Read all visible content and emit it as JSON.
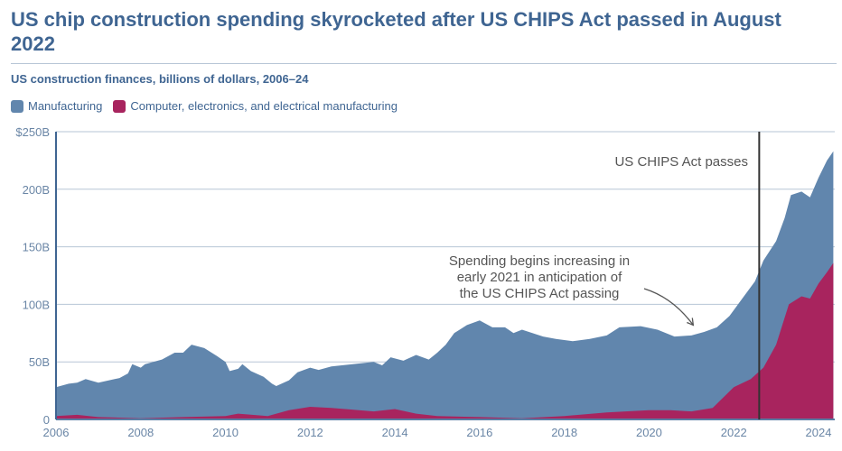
{
  "title": "US chip construction spending skyrocketed after US CHIPS Act passed in August 2022",
  "subtitle": "US construction finances, billions of dollars, 2006–24",
  "chart_data": {
    "type": "area",
    "xlim": [
      2006,
      2024.4
    ],
    "ylim": [
      0,
      250
    ],
    "grid": true,
    "legend_placement": "top-left",
    "x_ticks": [
      2006,
      2008,
      2010,
      2012,
      2014,
      2016,
      2018,
      2020,
      2022,
      2024
    ],
    "x_tick_labels": [
      "2006",
      "2008",
      "2010",
      "2012",
      "2014",
      "2016",
      "2018",
      "2020",
      "2022",
      "2024"
    ],
    "y_ticks": [
      0,
      50,
      100,
      150,
      200,
      250
    ],
    "y_tick_labels": [
      "0",
      "50B",
      "100B",
      "150B",
      "200B",
      "$250B"
    ],
    "series": [
      {
        "name": "Manufacturing",
        "color": "#6186ad",
        "points": [
          [
            2006.0,
            28
          ],
          [
            2006.3,
            31
          ],
          [
            2006.5,
            32
          ],
          [
            2006.7,
            35
          ],
          [
            2007.0,
            32
          ],
          [
            2007.5,
            36
          ],
          [
            2007.7,
            40
          ],
          [
            2007.8,
            48
          ],
          [
            2008.0,
            45
          ],
          [
            2008.1,
            48
          ],
          [
            2008.5,
            52
          ],
          [
            2008.8,
            58
          ],
          [
            2009.0,
            58
          ],
          [
            2009.2,
            65
          ],
          [
            2009.5,
            62
          ],
          [
            2009.8,
            55
          ],
          [
            2010.0,
            50
          ],
          [
            2010.1,
            42
          ],
          [
            2010.3,
            44
          ],
          [
            2010.4,
            48
          ],
          [
            2010.6,
            42
          ],
          [
            2010.9,
            37
          ],
          [
            2011.1,
            31
          ],
          [
            2011.2,
            29
          ],
          [
            2011.5,
            34
          ],
          [
            2011.7,
            41
          ],
          [
            2012.0,
            45
          ],
          [
            2012.2,
            43
          ],
          [
            2012.5,
            46
          ],
          [
            2013.0,
            48
          ],
          [
            2013.5,
            50
          ],
          [
            2013.7,
            47
          ],
          [
            2013.9,
            54
          ],
          [
            2014.2,
            51
          ],
          [
            2014.5,
            56
          ],
          [
            2014.8,
            52
          ],
          [
            2015.0,
            58
          ],
          [
            2015.2,
            65
          ],
          [
            2015.4,
            75
          ],
          [
            2015.7,
            82
          ],
          [
            2016.0,
            86
          ],
          [
            2016.3,
            80
          ],
          [
            2016.6,
            80
          ],
          [
            2016.8,
            75
          ],
          [
            2017.0,
            78
          ],
          [
            2017.5,
            72
          ],
          [
            2017.8,
            70
          ],
          [
            2018.2,
            68
          ],
          [
            2018.6,
            70
          ],
          [
            2019.0,
            73
          ],
          [
            2019.3,
            80
          ],
          [
            2019.8,
            81
          ],
          [
            2020.2,
            78
          ],
          [
            2020.6,
            72
          ],
          [
            2021.0,
            73
          ],
          [
            2021.3,
            76
          ],
          [
            2021.6,
            80
          ],
          [
            2021.9,
            90
          ],
          [
            2022.2,
            105
          ],
          [
            2022.5,
            120
          ],
          [
            2022.7,
            138
          ],
          [
            2023.0,
            155
          ],
          [
            2023.2,
            175
          ],
          [
            2023.35,
            195
          ],
          [
            2023.6,
            198
          ],
          [
            2023.8,
            193
          ],
          [
            2024.0,
            210
          ],
          [
            2024.2,
            225
          ],
          [
            2024.35,
            233
          ]
        ]
      },
      {
        "name": "Computer, electronics, and electrical manufacturing",
        "color": "#a8245e",
        "points": [
          [
            2006.0,
            3
          ],
          [
            2006.5,
            4
          ],
          [
            2007.0,
            2
          ],
          [
            2008.0,
            1
          ],
          [
            2009.0,
            2
          ],
          [
            2010.0,
            3
          ],
          [
            2010.3,
            5
          ],
          [
            2011.0,
            3
          ],
          [
            2011.5,
            8
          ],
          [
            2012.0,
            11
          ],
          [
            2012.5,
            10
          ],
          [
            2013.5,
            7
          ],
          [
            2014.0,
            9
          ],
          [
            2014.5,
            5
          ],
          [
            2015.0,
            3
          ],
          [
            2016.0,
            2
          ],
          [
            2017.0,
            1
          ],
          [
            2018.0,
            3
          ],
          [
            2019.0,
            6
          ],
          [
            2020.0,
            8
          ],
          [
            2020.5,
            8
          ],
          [
            2021.0,
            7
          ],
          [
            2021.5,
            10
          ],
          [
            2022.0,
            28
          ],
          [
            2022.4,
            35
          ],
          [
            2022.7,
            45
          ],
          [
            2023.0,
            65
          ],
          [
            2023.3,
            100
          ],
          [
            2023.6,
            107
          ],
          [
            2023.8,
            105
          ],
          [
            2024.0,
            118
          ],
          [
            2024.2,
            128
          ],
          [
            2024.35,
            136
          ]
        ]
      }
    ],
    "annotations": [
      {
        "text": "US CHIPS Act passes",
        "x": 2022.6
      },
      {
        "lines": [
          "Spending begins increasing in",
          "early 2021 in anticipation of",
          "the US CHIPS Act passing"
        ],
        "arrow_to": [
          2021.0,
          78
        ]
      }
    ]
  }
}
